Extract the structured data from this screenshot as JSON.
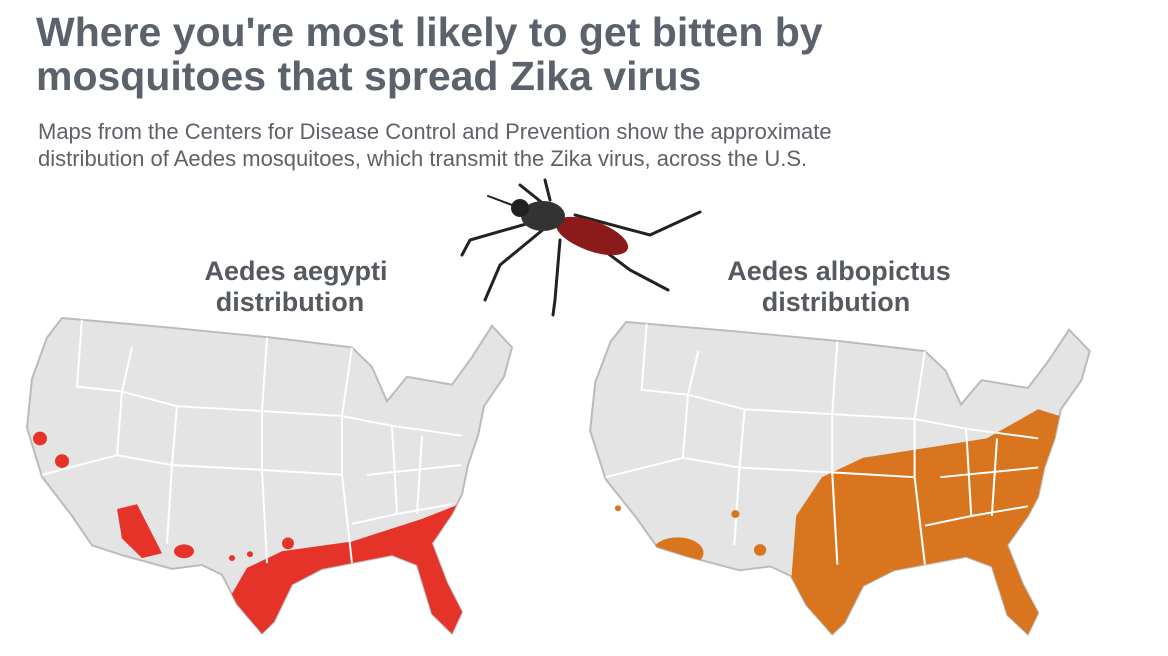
{
  "header": {
    "title_lines": [
      "Where you're most likely to get bitten by",
      "mosquitoes that spread Zika virus"
    ],
    "subtitle_lines": [
      "Maps from the Centers for Disease Control and Prevention show the approximate",
      "distribution of Aedes mosquitoes, which transmit the Zika virus, across the U.S."
    ]
  },
  "maps": [
    {
      "label_lines": [
        "Aedes aegypti",
        "distribution"
      ]
    },
    {
      "label_lines": [
        "Aedes albopictus",
        "distribution"
      ]
    }
  ]
}
